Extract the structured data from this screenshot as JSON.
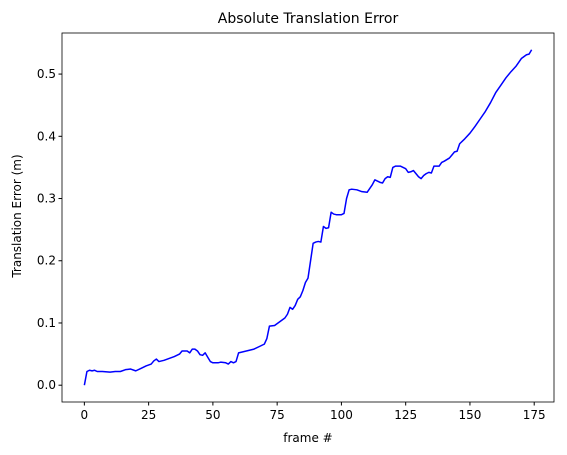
{
  "chart_data": {
    "type": "line",
    "title": "Absolute Translation Error",
    "xlabel": "frame #",
    "ylabel": "Translation Error (m)",
    "color": "#0000ff",
    "x": [
      0,
      1,
      2,
      3,
      4,
      5,
      7,
      10,
      12,
      14,
      16,
      18,
      20,
      22,
      24,
      26,
      27,
      28,
      29,
      31,
      33,
      35,
      37,
      38,
      40,
      41,
      42,
      43,
      44,
      45,
      46,
      47,
      48,
      49,
      50,
      52,
      53,
      55,
      56,
      57,
      58,
      59,
      60,
      62,
      64,
      66,
      68,
      70,
      71,
      72,
      74,
      76,
      78,
      79,
      80,
      81,
      82,
      83,
      84,
      85,
      86,
      87,
      88,
      89,
      90,
      91,
      92,
      93,
      94,
      95,
      96,
      97,
      98,
      100,
      101,
      102,
      103,
      104,
      106,
      108,
      110,
      111,
      112,
      113,
      114,
      115,
      116,
      117,
      118,
      119,
      120,
      121,
      123,
      124,
      125,
      126,
      127,
      128,
      129,
      130,
      131,
      132,
      133,
      134,
      135,
      136,
      138,
      139,
      140,
      142,
      143,
      144,
      145,
      146,
      148,
      150,
      152,
      154,
      156,
      158,
      160,
      162,
      164,
      166,
      168,
      170,
      172,
      173,
      174
    ],
    "values": [
      0.0,
      0.022,
      0.024,
      0.023,
      0.024,
      0.022,
      0.022,
      0.021,
      0.022,
      0.022,
      0.025,
      0.026,
      0.023,
      0.027,
      0.031,
      0.034,
      0.039,
      0.042,
      0.038,
      0.04,
      0.043,
      0.046,
      0.05,
      0.055,
      0.055,
      0.052,
      0.058,
      0.058,
      0.055,
      0.049,
      0.048,
      0.052,
      0.045,
      0.038,
      0.036,
      0.036,
      0.037,
      0.036,
      0.034,
      0.038,
      0.036,
      0.038,
      0.052,
      0.054,
      0.056,
      0.058,
      0.062,
      0.066,
      0.075,
      0.095,
      0.096,
      0.102,
      0.108,
      0.114,
      0.125,
      0.122,
      0.128,
      0.138,
      0.142,
      0.152,
      0.165,
      0.172,
      0.2,
      0.228,
      0.23,
      0.231,
      0.23,
      0.255,
      0.252,
      0.253,
      0.278,
      0.275,
      0.274,
      0.274,
      0.276,
      0.3,
      0.314,
      0.315,
      0.314,
      0.311,
      0.31,
      0.316,
      0.322,
      0.33,
      0.328,
      0.326,
      0.325,
      0.332,
      0.335,
      0.334,
      0.35,
      0.352,
      0.352,
      0.35,
      0.348,
      0.342,
      0.343,
      0.345,
      0.34,
      0.335,
      0.332,
      0.337,
      0.34,
      0.342,
      0.341,
      0.352,
      0.352,
      0.358,
      0.36,
      0.365,
      0.37,
      0.375,
      0.376,
      0.388,
      0.396,
      0.405,
      0.416,
      0.428,
      0.44,
      0.454,
      0.47,
      0.482,
      0.494,
      0.504,
      0.513,
      0.525,
      0.531,
      0.532,
      0.539
    ],
    "xlim": [
      -8.7,
      182.7
    ],
    "xticks": [
      0,
      25,
      50,
      75,
      100,
      125,
      150,
      175
    ],
    "ylim": [
      -0.027,
      0.566
    ],
    "yticks": [
      {
        "value": 0,
        "label": "0.0"
      },
      0.1,
      0.2,
      0.3,
      0.4,
      0.5
    ]
  }
}
